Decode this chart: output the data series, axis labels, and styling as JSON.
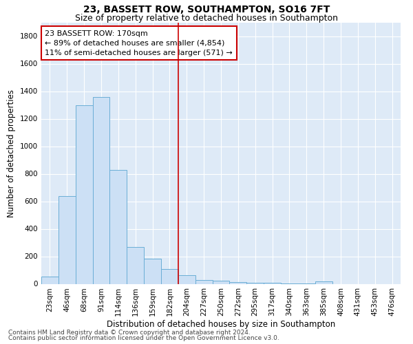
{
  "title": "23, BASSETT ROW, SOUTHAMPTON, SO16 7FT",
  "subtitle": "Size of property relative to detached houses in Southampton",
  "xlabel": "Distribution of detached houses by size in Southampton",
  "ylabel": "Number of detached properties",
  "footnote1": "Contains HM Land Registry data © Crown copyright and database right 2024.",
  "footnote2": "Contains public sector information licensed under the Open Government Licence v3.0.",
  "annotation_title": "23 BASSETT ROW: 170sqm",
  "annotation_line1": "← 89% of detached houses are smaller (4,854)",
  "annotation_line2": "11% of semi-detached houses are larger (571) →",
  "bar_color": "#cce0f5",
  "bar_edge_color": "#6aaed6",
  "vline_color": "#cc0000",
  "vline_x": 7.5,
  "categories": [
    "23sqm",
    "46sqm",
    "68sqm",
    "91sqm",
    "114sqm",
    "136sqm",
    "159sqm",
    "182sqm",
    "204sqm",
    "227sqm",
    "250sqm",
    "272sqm",
    "295sqm",
    "317sqm",
    "340sqm",
    "363sqm",
    "385sqm",
    "408sqm",
    "431sqm",
    "453sqm",
    "476sqm"
  ],
  "values": [
    55,
    640,
    1300,
    1360,
    830,
    270,
    185,
    110,
    65,
    30,
    22,
    15,
    10,
    8,
    5,
    3,
    18,
    0,
    0,
    0,
    0
  ],
  "ylim": [
    0,
    1900
  ],
  "yticks": [
    0,
    200,
    400,
    600,
    800,
    1000,
    1200,
    1400,
    1600,
    1800
  ],
  "background_color": "#deeaf7",
  "annotation_box_facecolor": "#ffffff",
  "annotation_box_edge": "#cc0000",
  "title_fontsize": 10,
  "subtitle_fontsize": 9,
  "axis_label_fontsize": 8.5,
  "tick_fontsize": 7.5,
  "annotation_fontsize": 8,
  "footnote_fontsize": 6.5
}
